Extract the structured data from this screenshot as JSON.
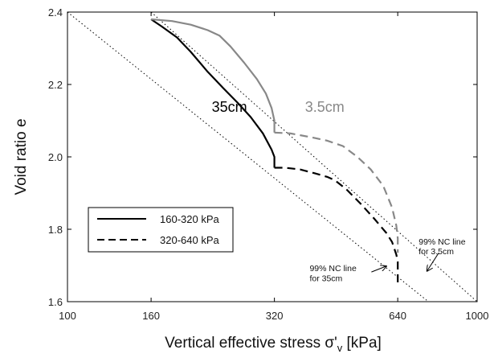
{
  "chart_data": {
    "type": "line",
    "xlabel": "Vertical effective stress σ'v [kPa]",
    "xlabel_main": "Vertical effective stress σ'",
    "xlabel_sub": "v",
    "xlabel_unit": " [kPa]",
    "ylabel": "Void ratio e",
    "x_scale": "log",
    "xlim": [
      100,
      1000
    ],
    "ylim": [
      1.6,
      2.4
    ],
    "xticks": [
      100,
      160,
      320,
      640,
      1000
    ],
    "xtick_labels": [
      "100",
      "160",
      "320",
      "640",
      "1000"
    ],
    "yticks": [
      1.6,
      1.8,
      2.0,
      2.2,
      2.4
    ],
    "ytick_labels": [
      "1.6",
      "1.8",
      "2.0",
      "2.2",
      "2.4"
    ],
    "grid": false,
    "legend": {
      "position": "lower-left",
      "entries": [
        {
          "label": "160-320 kPa",
          "style": "solid"
        },
        {
          "label": "320-640 kPa",
          "style": "dashed"
        }
      ]
    },
    "series": [
      {
        "name": "35cm 160-320 kPa",
        "color": "#000000",
        "style": "solid",
        "x": [
          160,
          170,
          185,
          200,
          220,
          240,
          260,
          280,
          300,
          315,
          320,
          320
        ],
        "y": [
          2.38,
          2.36,
          2.33,
          2.29,
          2.235,
          2.19,
          2.15,
          2.11,
          2.065,
          2.02,
          2.0,
          1.97
        ]
      },
      {
        "name": "35cm 320-640 kPa",
        "color": "#000000",
        "style": "dashed",
        "x": [
          320,
          340,
          370,
          400,
          430,
          450,
          480,
          520,
          560,
          600,
          620,
          635,
          640,
          640
        ],
        "y": [
          1.97,
          1.97,
          1.965,
          1.955,
          1.945,
          1.935,
          1.91,
          1.87,
          1.83,
          1.79,
          1.765,
          1.73,
          1.71,
          1.64
        ]
      },
      {
        "name": "3.5cm 160-320 kPa",
        "color": "#888888",
        "style": "solid",
        "x": [
          160,
          180,
          200,
          220,
          235,
          250,
          270,
          290,
          305,
          315,
          320,
          320
        ],
        "y": [
          2.38,
          2.375,
          2.365,
          2.35,
          2.335,
          2.305,
          2.26,
          2.215,
          2.175,
          2.135,
          2.1,
          2.067
        ]
      },
      {
        "name": "3.5cm 320-640 kPa",
        "color": "#888888",
        "style": "dashed",
        "x": [
          320,
          350,
          390,
          430,
          470,
          510,
          550,
          590,
          620,
          635,
          640,
          640
        ],
        "y": [
          2.067,
          2.065,
          2.055,
          2.045,
          2.03,
          2.0,
          1.965,
          1.92,
          1.86,
          1.81,
          1.775,
          1.735
        ]
      }
    ],
    "reference_lines": [
      {
        "name": "99% NC line for 35cm",
        "style": "dotted",
        "x": [
          100,
          800
        ],
        "y": [
          2.4,
          1.58
        ]
      },
      {
        "name": "99% NC line for 3.5cm",
        "style": "dotted",
        "x": [
          160,
          1000
        ],
        "y": [
          2.4,
          1.6
        ]
      }
    ],
    "annotations": [
      {
        "id": "label-35",
        "text": "35cm",
        "color": "#000000",
        "x": 225,
        "y": 2.125
      },
      {
        "id": "label-3p5",
        "text": "3.5cm",
        "color": "#888888",
        "x": 380,
        "y": 2.125
      },
      {
        "id": "nc35-line1",
        "text": "99% NC line",
        "color": "#000000",
        "x": 390,
        "y": 1.684
      },
      {
        "id": "nc35-line2",
        "text": "for 35cm",
        "color": "#000000",
        "x": 390,
        "y": 1.657
      },
      {
        "id": "nc3p5-line1",
        "text": "99% NC line",
        "color": "#000000",
        "x": 720,
        "y": 1.758
      },
      {
        "id": "nc3p5-line2",
        "text": "for 3.5cm",
        "color": "#000000",
        "x": 720,
        "y": 1.731
      }
    ],
    "arrows": [
      {
        "name": "arrow-nc-35cm",
        "from": [
          552,
          1.682
        ],
        "to": [
          600,
          1.698
        ]
      },
      {
        "name": "arrow-nc-3p5cm",
        "from": [
          805,
          1.734
        ],
        "to": [
          755,
          1.685
        ]
      }
    ]
  }
}
